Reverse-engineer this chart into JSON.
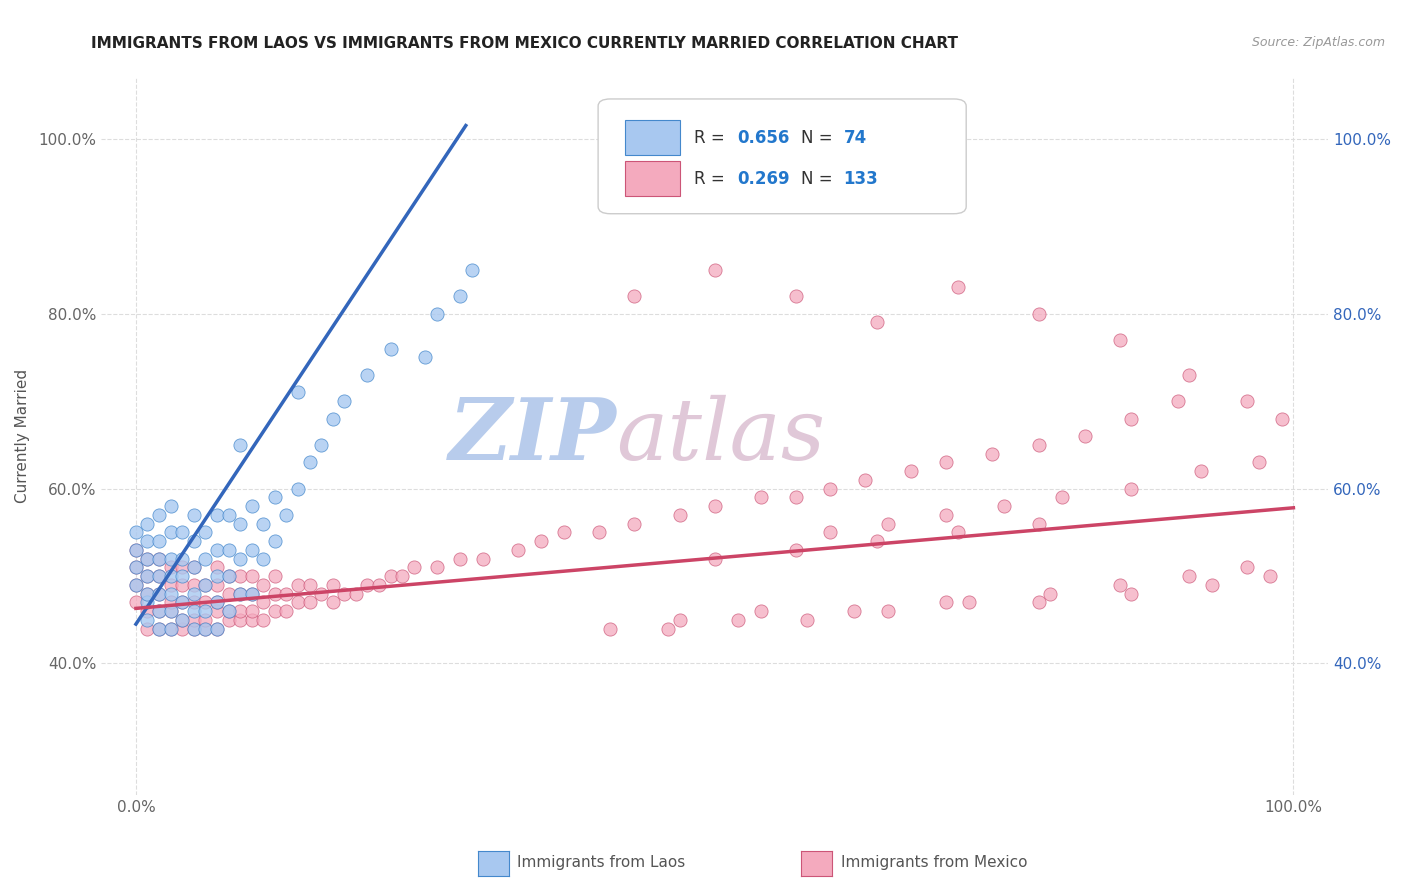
{
  "title": "IMMIGRANTS FROM LAOS VS IMMIGRANTS FROM MEXICO CURRENTLY MARRIED CORRELATION CHART",
  "source_text": "Source: ZipAtlas.com",
  "ylabel": "Currently Married",
  "xticklabels_pos": [
    0.0,
    1.0
  ],
  "xticklabels": [
    "0.0%",
    "100.0%"
  ],
  "ytick_vals": [
    0.4,
    0.6,
    0.8,
    1.0
  ],
  "yticklabels": [
    "40.0%",
    "60.0%",
    "80.0%",
    "100.0%"
  ],
  "xlim": [
    -0.03,
    1.03
  ],
  "ylim": [
    0.25,
    1.07
  ],
  "r_laos": "0.656",
  "n_laos": "74",
  "r_mexico": "0.269",
  "n_mexico": "133",
  "color_laos": "#A8C8F0",
  "color_mexico": "#F4AABE",
  "edge_color_laos": "#4488CC",
  "edge_color_mexico": "#CC5577",
  "line_color_laos": "#3366BB",
  "line_color_mexico": "#CC4466",
  "watermark_color": "#D0DCF0",
  "watermark_color2": "#E8C8D8",
  "background_color": "#FFFFFF",
  "grid_color": "#DDDDDD",
  "title_color": "#222222",
  "axis_label_color": "#555555",
  "tick_label_color": "#666666",
  "right_tick_color": "#3366BB",
  "legend_text_color": "#333333",
  "r_value_color": "#2277CC",
  "laos_line_x": [
    0.0,
    0.285
  ],
  "laos_line_y": [
    0.445,
    1.015
  ],
  "mexico_line_x": [
    0.0,
    1.0
  ],
  "mexico_line_y": [
    0.463,
    0.578
  ],
  "laos_x": [
    0.0,
    0.0,
    0.0,
    0.0,
    0.01,
    0.01,
    0.01,
    0.01,
    0.01,
    0.01,
    0.01,
    0.02,
    0.02,
    0.02,
    0.02,
    0.02,
    0.02,
    0.02,
    0.03,
    0.03,
    0.03,
    0.03,
    0.03,
    0.03,
    0.03,
    0.04,
    0.04,
    0.04,
    0.04,
    0.04,
    0.05,
    0.05,
    0.05,
    0.05,
    0.05,
    0.05,
    0.06,
    0.06,
    0.06,
    0.06,
    0.06,
    0.07,
    0.07,
    0.07,
    0.07,
    0.07,
    0.08,
    0.08,
    0.08,
    0.08,
    0.09,
    0.09,
    0.09,
    0.1,
    0.1,
    0.1,
    0.11,
    0.11,
    0.12,
    0.12,
    0.13,
    0.14,
    0.15,
    0.16,
    0.17,
    0.18,
    0.2,
    0.22,
    0.25,
    0.26,
    0.28,
    0.29,
    0.14,
    0.09
  ],
  "laos_y": [
    0.49,
    0.51,
    0.53,
    0.55,
    0.45,
    0.47,
    0.48,
    0.5,
    0.52,
    0.54,
    0.56,
    0.44,
    0.46,
    0.48,
    0.5,
    0.52,
    0.54,
    0.57,
    0.44,
    0.46,
    0.48,
    0.5,
    0.52,
    0.55,
    0.58,
    0.45,
    0.47,
    0.5,
    0.52,
    0.55,
    0.44,
    0.46,
    0.48,
    0.51,
    0.54,
    0.57,
    0.44,
    0.46,
    0.49,
    0.52,
    0.55,
    0.44,
    0.47,
    0.5,
    0.53,
    0.57,
    0.46,
    0.5,
    0.53,
    0.57,
    0.48,
    0.52,
    0.56,
    0.48,
    0.53,
    0.58,
    0.52,
    0.56,
    0.54,
    0.59,
    0.57,
    0.6,
    0.63,
    0.65,
    0.68,
    0.7,
    0.73,
    0.76,
    0.75,
    0.8,
    0.82,
    0.85,
    0.71,
    0.65
  ],
  "mexico_x": [
    0.0,
    0.0,
    0.0,
    0.0,
    0.01,
    0.01,
    0.01,
    0.01,
    0.01,
    0.02,
    0.02,
    0.02,
    0.02,
    0.02,
    0.03,
    0.03,
    0.03,
    0.03,
    0.03,
    0.04,
    0.04,
    0.04,
    0.04,
    0.04,
    0.05,
    0.05,
    0.05,
    0.05,
    0.05,
    0.06,
    0.06,
    0.06,
    0.06,
    0.07,
    0.07,
    0.07,
    0.07,
    0.07,
    0.08,
    0.08,
    0.08,
    0.08,
    0.09,
    0.09,
    0.09,
    0.09,
    0.1,
    0.1,
    0.1,
    0.1,
    0.11,
    0.11,
    0.11,
    0.12,
    0.12,
    0.12,
    0.13,
    0.13,
    0.14,
    0.14,
    0.15,
    0.15,
    0.16,
    0.17,
    0.17,
    0.18,
    0.19,
    0.2,
    0.21,
    0.22,
    0.23,
    0.24,
    0.26,
    0.28,
    0.3,
    0.33,
    0.35,
    0.37,
    0.4,
    0.43,
    0.47,
    0.5,
    0.54,
    0.57,
    0.6,
    0.63,
    0.67,
    0.7,
    0.74,
    0.78,
    0.82,
    0.86,
    0.9,
    0.43,
    0.5,
    0.57,
    0.64,
    0.71,
    0.78,
    0.85,
    0.91,
    0.96,
    0.99,
    0.47,
    0.54,
    0.62,
    0.7,
    0.78,
    0.86,
    0.93,
    0.98,
    0.6,
    0.65,
    0.7,
    0.75,
    0.8,
    0.86,
    0.92,
    0.97,
    0.41,
    0.46,
    0.52,
    0.58,
    0.65,
    0.72,
    0.79,
    0.85,
    0.91,
    0.96,
    0.5,
    0.57,
    0.64,
    0.71,
    0.78
  ],
  "mexico_y": [
    0.47,
    0.49,
    0.51,
    0.53,
    0.44,
    0.46,
    0.48,
    0.5,
    0.52,
    0.44,
    0.46,
    0.48,
    0.5,
    0.52,
    0.44,
    0.46,
    0.47,
    0.49,
    0.51,
    0.44,
    0.45,
    0.47,
    0.49,
    0.51,
    0.44,
    0.45,
    0.47,
    0.49,
    0.51,
    0.44,
    0.45,
    0.47,
    0.49,
    0.44,
    0.46,
    0.47,
    0.49,
    0.51,
    0.45,
    0.46,
    0.48,
    0.5,
    0.45,
    0.46,
    0.48,
    0.5,
    0.45,
    0.46,
    0.48,
    0.5,
    0.45,
    0.47,
    0.49,
    0.46,
    0.48,
    0.5,
    0.46,
    0.48,
    0.47,
    0.49,
    0.47,
    0.49,
    0.48,
    0.47,
    0.49,
    0.48,
    0.48,
    0.49,
    0.49,
    0.5,
    0.5,
    0.51,
    0.51,
    0.52,
    0.52,
    0.53,
    0.54,
    0.55,
    0.55,
    0.56,
    0.57,
    0.58,
    0.59,
    0.59,
    0.6,
    0.61,
    0.62,
    0.63,
    0.64,
    0.65,
    0.66,
    0.68,
    0.7,
    0.82,
    0.85,
    0.82,
    0.79,
    0.83,
    0.8,
    0.77,
    0.73,
    0.7,
    0.68,
    0.45,
    0.46,
    0.46,
    0.47,
    0.47,
    0.48,
    0.49,
    0.5,
    0.55,
    0.56,
    0.57,
    0.58,
    0.59,
    0.6,
    0.62,
    0.63,
    0.44,
    0.44,
    0.45,
    0.45,
    0.46,
    0.47,
    0.48,
    0.49,
    0.5,
    0.51,
    0.52,
    0.53,
    0.54,
    0.55,
    0.56
  ]
}
